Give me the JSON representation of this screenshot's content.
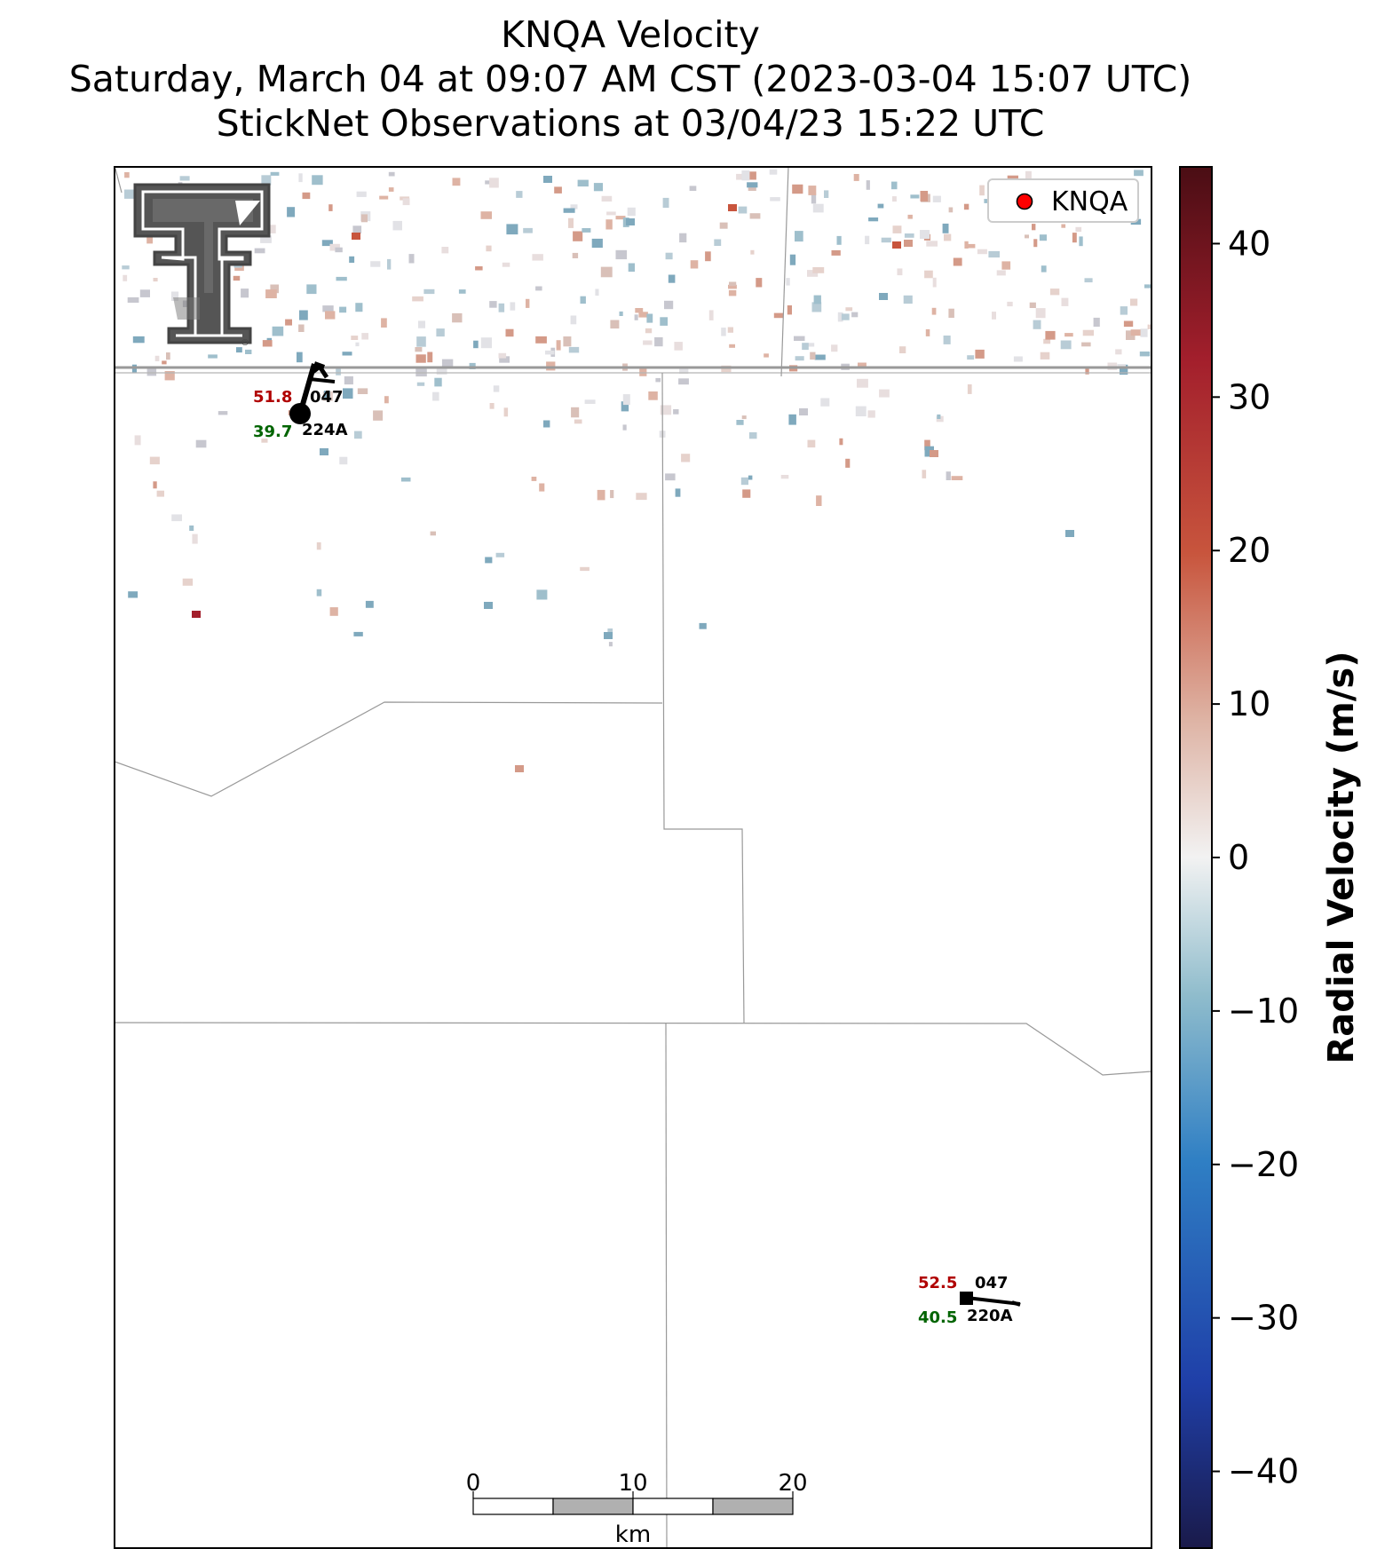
{
  "title": {
    "line1": "KNQA Velocity",
    "line2": "Saturday, March 04 at 09:07 AM CST (2023-03-04 15:07 UTC)",
    "line3": "StickNet Observations at 03/04/23 15:22 UTC"
  },
  "legend": {
    "label": "KNQA",
    "marker_color": "#ff0000"
  },
  "logo": {
    "name": "Texas Tech Double T",
    "registered": "®"
  },
  "colorbar": {
    "label": "Radial Velocity (m/s)",
    "min": -45,
    "max": 45,
    "ticks": [
      "40",
      "30",
      "20",
      "10",
      "0",
      "−10",
      "−20",
      "−30",
      "−40"
    ],
    "tick_values": [
      40,
      30,
      20,
      10,
      0,
      -10,
      -20,
      -30,
      -40
    ],
    "colors": [
      "#1a1a4a",
      "#1f3fa8",
      "#2f7fc4",
      "#8fbccc",
      "#f2f2f2",
      "#deb3a4",
      "#c8553d",
      "#a31f2c",
      "#4a0d14"
    ]
  },
  "stations": [
    {
      "id": "047",
      "temp": "51.8",
      "dew": "39.7",
      "code": "224A"
    },
    {
      "id": "047",
      "temp": "52.5",
      "dew": "40.5",
      "code": "220A"
    }
  ],
  "scalebar": {
    "ticks": [
      "0",
      "10",
      "20"
    ],
    "unit": "km"
  },
  "colors": {
    "temp": "#b00000",
    "dew": "#006400"
  }
}
